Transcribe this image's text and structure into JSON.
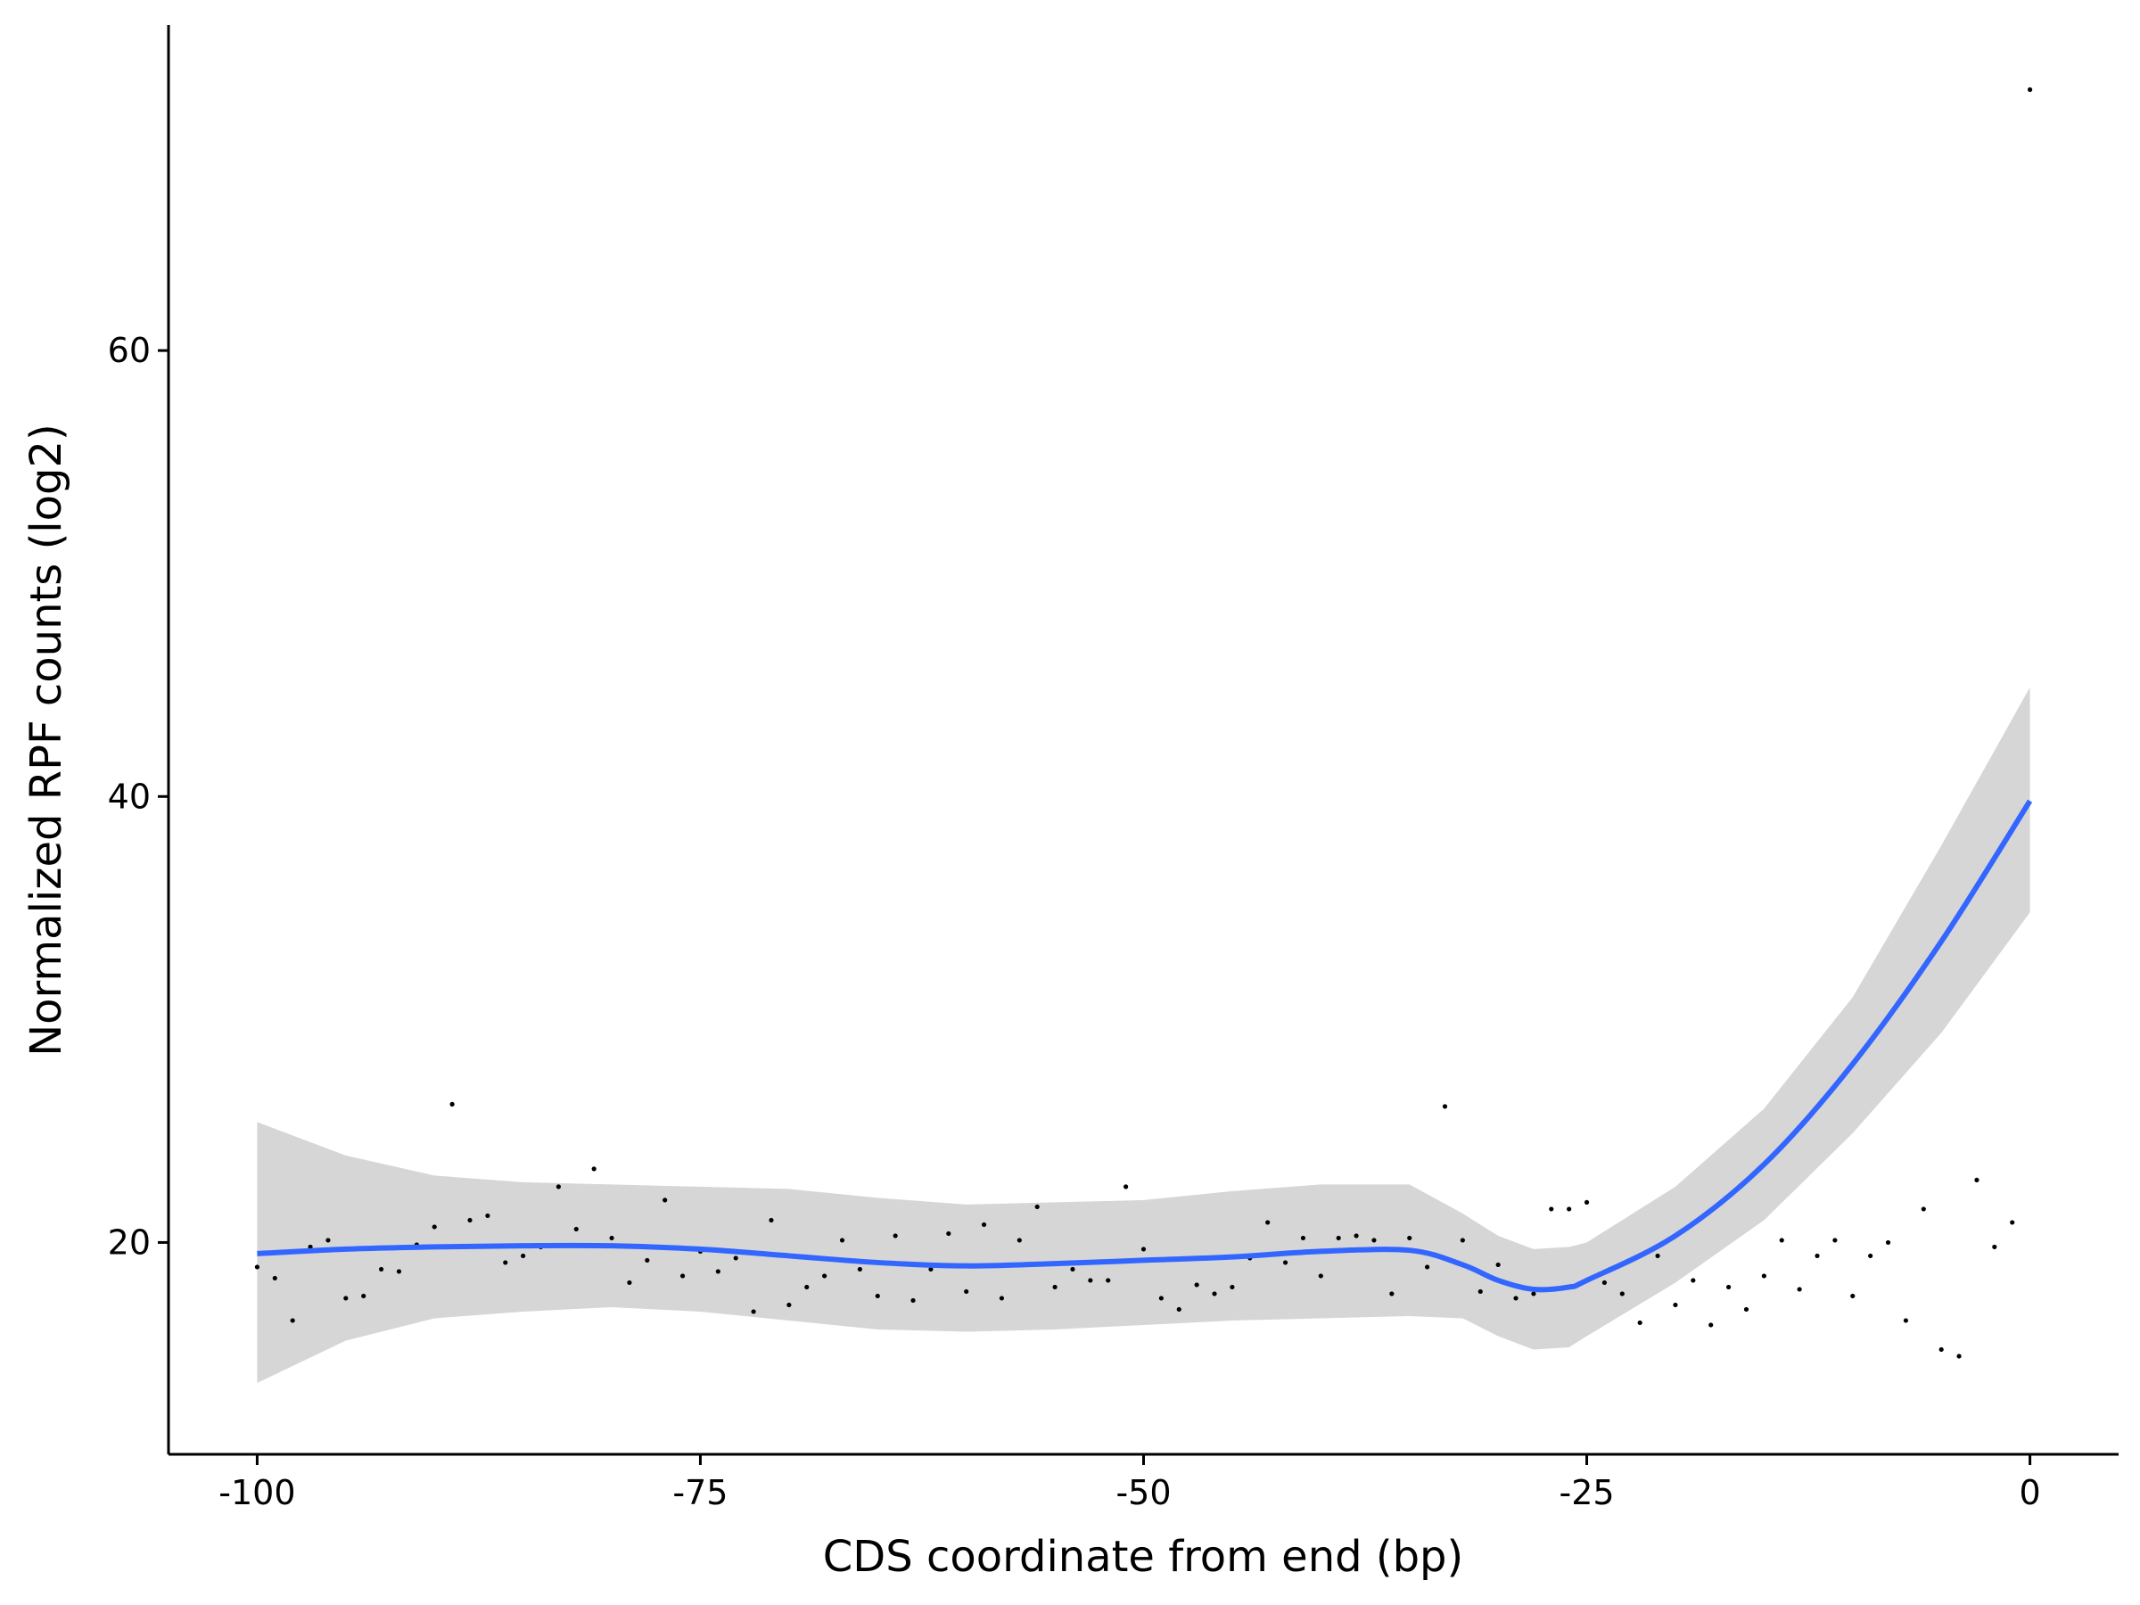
{
  "chart_data": {
    "type": "scatter",
    "x_label": "CDS coordinate from end (bp)",
    "y_label": "Normalized RPF counts (log2)",
    "xlim": [
      -105,
      5
    ],
    "ylim": [
      10.5,
      74.6
    ],
    "xticks": [
      -100,
      -75,
      -50,
      -25,
      0
    ],
    "yticks": [
      20,
      40,
      60
    ],
    "points": {
      "color": "#000000",
      "x": [
        -100,
        -99,
        -98,
        -97,
        -96,
        -95,
        -94,
        -93,
        -92,
        -91,
        -90,
        -89,
        -88,
        -87,
        -86,
        -85,
        -84,
        -83,
        -82,
        -81,
        -80,
        -79,
        -78,
        -77,
        -76,
        -75,
        -74,
        -73,
        -72,
        -71,
        -70,
        -69,
        -68,
        -67,
        -66,
        -65,
        -64,
        -63,
        -62,
        -61,
        -60,
        -59,
        -58,
        -57,
        -56,
        -55,
        -54,
        -53,
        -52,
        -51,
        -50,
        -49,
        -48,
        -47,
        -46,
        -45,
        -44,
        -43,
        -42,
        -41,
        -40,
        -39,
        -38,
        -37,
        -36,
        -35,
        -34,
        -33,
        -32,
        -31,
        -30,
        -29,
        -28,
        -27,
        -26,
        -25,
        -24,
        -23,
        -22,
        -21,
        -20,
        -19,
        -18,
        -17,
        -16,
        -15,
        -14,
        -13,
        -12,
        -11,
        -10,
        -9,
        -8,
        -7,
        -6,
        -5,
        -4,
        -3,
        -2,
        -1,
        0
      ],
      "values": [
        18.9,
        18.4,
        16.5,
        19.8,
        20.1,
        17.5,
        17.6,
        18.8,
        18.7,
        19.9,
        20.7,
        26.2,
        21.0,
        21.2,
        19.1,
        19.4,
        19.8,
        22.5,
        20.6,
        23.3,
        20.2,
        18.2,
        19.2,
        21.9,
        18.5,
        19.6,
        18.7,
        19.3,
        16.9,
        21.0,
        17.2,
        18.0,
        18.5,
        20.1,
        18.8,
        17.6,
        20.3,
        17.4,
        18.8,
        20.4,
        17.8,
        20.8,
        17.5,
        20.1,
        21.6,
        18.0,
        18.8,
        18.3,
        18.3,
        22.5,
        19.7,
        17.5,
        17.0,
        18.1,
        17.7,
        18.0,
        19.3,
        20.9,
        19.1,
        20.2,
        18.5,
        20.2,
        20.3,
        20.1,
        17.7,
        20.2,
        18.9,
        26.1,
        20.1,
        17.8,
        19.0,
        17.5,
        17.7,
        21.5,
        21.5,
        21.8,
        18.2,
        17.7,
        16.4,
        19.4,
        17.2,
        18.3,
        16.3,
        18.0,
        17.0,
        18.5,
        20.1,
        17.9,
        19.4,
        20.1,
        17.6,
        19.4,
        20.0,
        16.5,
        21.5,
        15.2,
        14.9,
        22.8,
        19.8,
        20.9,
        71.7
      ]
    },
    "smooth": {
      "color": "#3366ff",
      "band_color": "#d6d6d6",
      "x": [
        -100,
        -95,
        -90,
        -85,
        -80,
        -75,
        -70,
        -65,
        -60,
        -55,
        -50,
        -45,
        -40,
        -35,
        -32,
        -30,
        -28,
        -26,
        -25,
        -20,
        -15,
        -10,
        -5,
        0
      ],
      "values": [
        19.5,
        19.7,
        19.8,
        19.85,
        19.85,
        19.7,
        19.4,
        19.1,
        18.95,
        19.05,
        19.2,
        19.35,
        19.6,
        19.65,
        19.0,
        18.3,
        17.9,
        18.0,
        18.3,
        20.3,
        23.5,
        28.0,
        33.5,
        39.8
      ],
      "upper": [
        25.4,
        23.9,
        23.0,
        22.7,
        22.6,
        22.5,
        22.4,
        22.0,
        21.7,
        21.8,
        21.9,
        22.3,
        22.6,
        22.6,
        21.3,
        20.3,
        19.7,
        19.8,
        20.0,
        22.5,
        26.0,
        31.0,
        37.8,
        44.9
      ],
      "lower": [
        13.7,
        15.6,
        16.6,
        16.9,
        17.1,
        16.9,
        16.5,
        16.1,
        16.0,
        16.1,
        16.3,
        16.5,
        16.6,
        16.7,
        16.6,
        15.8,
        15.2,
        15.3,
        15.8,
        18.2,
        21.0,
        24.9,
        29.4,
        34.8
      ]
    }
  }
}
